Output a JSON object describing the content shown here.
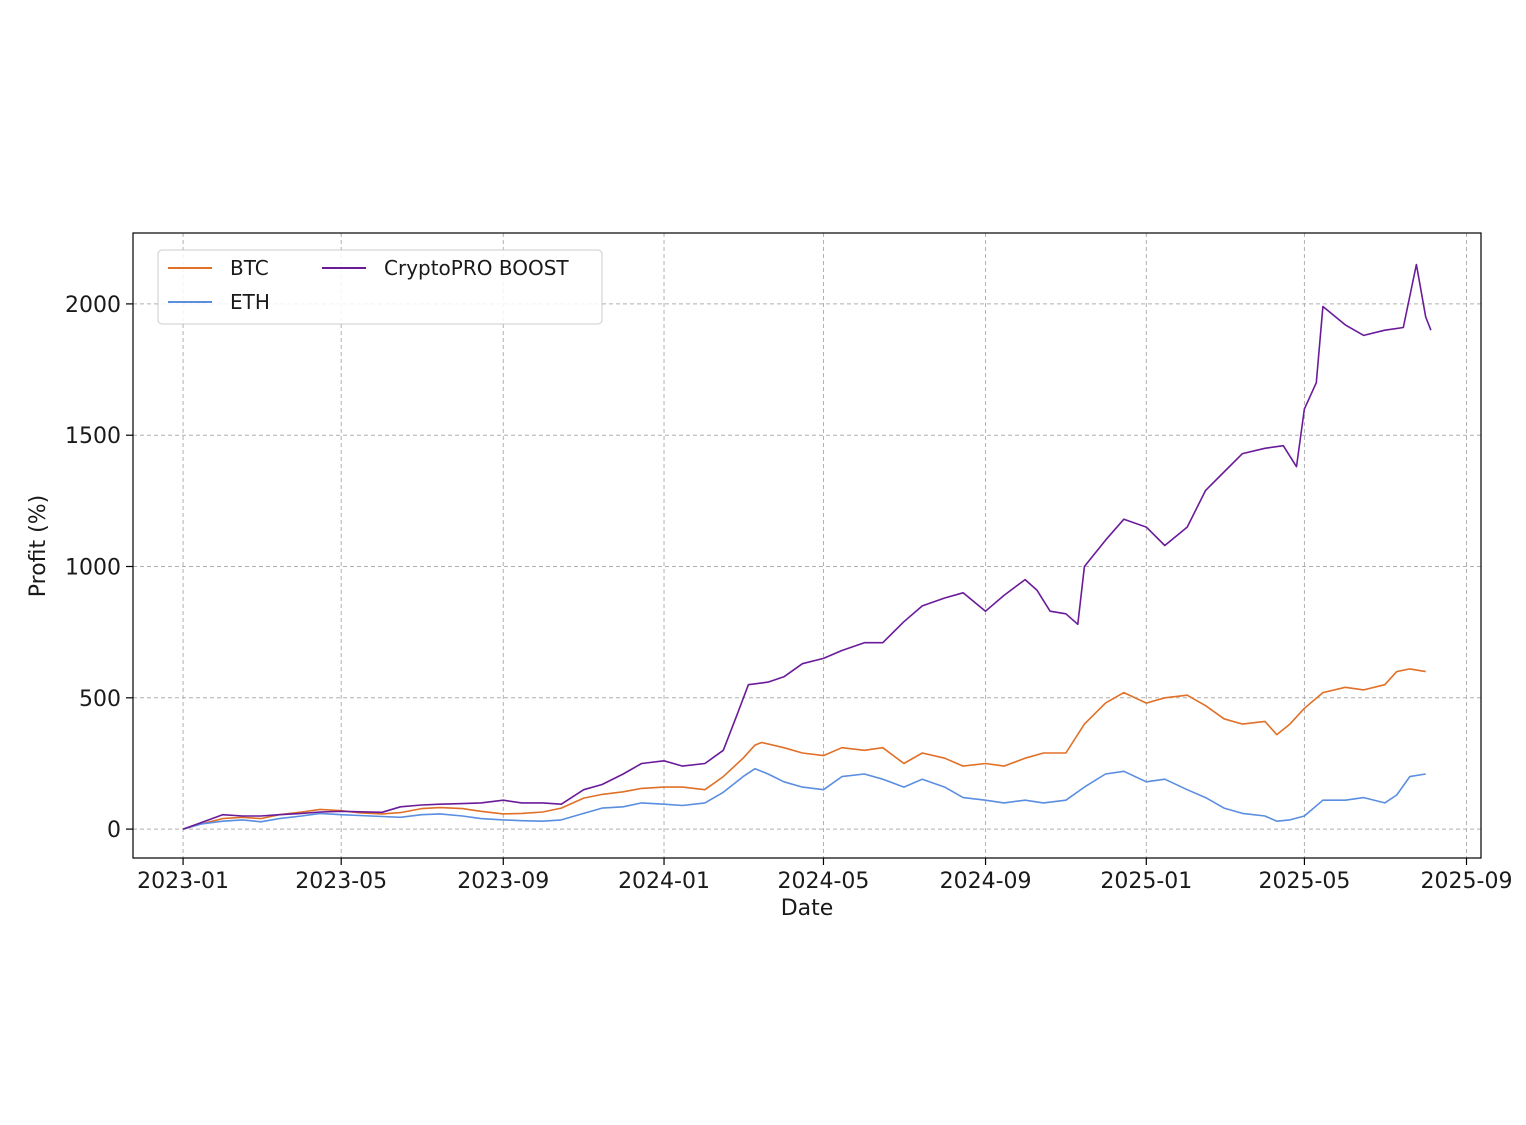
{
  "chart_data": {
    "type": "line",
    "title": "",
    "xlabel": "Date",
    "ylabel": "Profit (%)",
    "xlim": [
      "2022-11-24",
      "2025-09-12"
    ],
    "ylim": [
      -110,
      2270
    ],
    "x_ticks": [
      "2023-01",
      "2023-05",
      "2023-09",
      "2024-01",
      "2024-05",
      "2024-09",
      "2025-01",
      "2025-05",
      "2025-09"
    ],
    "x_tick_dates": [
      "2023-01-01",
      "2023-05-01",
      "2023-09-01",
      "2024-01-01",
      "2024-05-01",
      "2024-09-01",
      "2025-01-01",
      "2025-05-01",
      "2025-09-01"
    ],
    "y_ticks": [
      0,
      500,
      1000,
      1500,
      2000
    ],
    "grid": true,
    "legend_position": "top-left",
    "series": [
      {
        "name": "BTC",
        "color": "#e07027",
        "points": [
          [
            "2023-01-01",
            0
          ],
          [
            "2023-01-15",
            20
          ],
          [
            "2023-01-31",
            40
          ],
          [
            "2023-02-15",
            45
          ],
          [
            "2023-03-01",
            40
          ],
          [
            "2023-03-15",
            55
          ],
          [
            "2023-04-01",
            65
          ],
          [
            "2023-04-15",
            75
          ],
          [
            "2023-05-01",
            70
          ],
          [
            "2023-05-15",
            62
          ],
          [
            "2023-06-01",
            58
          ],
          [
            "2023-06-15",
            63
          ],
          [
            "2023-07-01",
            78
          ],
          [
            "2023-07-15",
            82
          ],
          [
            "2023-08-01",
            78
          ],
          [
            "2023-08-15",
            68
          ],
          [
            "2023-09-01",
            58
          ],
          [
            "2023-09-15",
            60
          ],
          [
            "2023-10-01",
            65
          ],
          [
            "2023-10-15",
            80
          ],
          [
            "2023-11-01",
            118
          ],
          [
            "2023-11-15",
            132
          ],
          [
            "2023-12-01",
            142
          ],
          [
            "2023-12-15",
            155
          ],
          [
            "2024-01-01",
            160
          ],
          [
            "2024-01-15",
            160
          ],
          [
            "2024-02-01",
            150
          ],
          [
            "2024-02-15",
            200
          ],
          [
            "2024-03-01",
            270
          ],
          [
            "2024-03-10",
            320
          ],
          [
            "2024-03-15",
            330
          ],
          [
            "2024-04-01",
            310
          ],
          [
            "2024-04-15",
            290
          ],
          [
            "2024-05-01",
            280
          ],
          [
            "2024-05-15",
            310
          ],
          [
            "2024-06-01",
            300
          ],
          [
            "2024-06-15",
            310
          ],
          [
            "2024-07-01",
            250
          ],
          [
            "2024-07-15",
            290
          ],
          [
            "2024-08-01",
            270
          ],
          [
            "2024-08-15",
            240
          ],
          [
            "2024-09-01",
            250
          ],
          [
            "2024-09-15",
            240
          ],
          [
            "2024-10-01",
            270
          ],
          [
            "2024-10-15",
            290
          ],
          [
            "2024-11-01",
            290
          ],
          [
            "2024-11-15",
            400
          ],
          [
            "2024-12-01",
            480
          ],
          [
            "2024-12-15",
            520
          ],
          [
            "2025-01-01",
            480
          ],
          [
            "2025-01-15",
            500
          ],
          [
            "2025-02-01",
            510
          ],
          [
            "2025-02-15",
            470
          ],
          [
            "2025-03-01",
            420
          ],
          [
            "2025-03-15",
            400
          ],
          [
            "2025-04-01",
            410
          ],
          [
            "2025-04-10",
            360
          ],
          [
            "2025-04-20",
            400
          ],
          [
            "2025-05-01",
            460
          ],
          [
            "2025-05-15",
            520
          ],
          [
            "2025-06-01",
            540
          ],
          [
            "2025-06-15",
            530
          ],
          [
            "2025-07-01",
            550
          ],
          [
            "2025-07-10",
            600
          ],
          [
            "2025-07-20",
            610
          ],
          [
            "2025-08-01",
            600
          ]
        ]
      },
      {
        "name": "ETH",
        "color": "#5a8ee0",
        "points": [
          [
            "2023-01-01",
            0
          ],
          [
            "2023-01-15",
            20
          ],
          [
            "2023-01-31",
            30
          ],
          [
            "2023-02-15",
            35
          ],
          [
            "2023-03-01",
            28
          ],
          [
            "2023-03-15",
            40
          ],
          [
            "2023-04-01",
            50
          ],
          [
            "2023-04-15",
            60
          ],
          [
            "2023-05-01",
            55
          ],
          [
            "2023-05-15",
            52
          ],
          [
            "2023-06-01",
            48
          ],
          [
            "2023-06-15",
            45
          ],
          [
            "2023-07-01",
            55
          ],
          [
            "2023-07-15",
            58
          ],
          [
            "2023-08-01",
            50
          ],
          [
            "2023-08-15",
            40
          ],
          [
            "2023-09-01",
            35
          ],
          [
            "2023-09-15",
            32
          ],
          [
            "2023-10-01",
            30
          ],
          [
            "2023-10-15",
            35
          ],
          [
            "2023-11-01",
            60
          ],
          [
            "2023-11-15",
            80
          ],
          [
            "2023-12-01",
            85
          ],
          [
            "2023-12-15",
            100
          ],
          [
            "2024-01-01",
            95
          ],
          [
            "2024-01-15",
            90
          ],
          [
            "2024-02-01",
            100
          ],
          [
            "2024-02-15",
            140
          ],
          [
            "2024-03-01",
            200
          ],
          [
            "2024-03-10",
            230
          ],
          [
            "2024-03-20",
            210
          ],
          [
            "2024-04-01",
            180
          ],
          [
            "2024-04-15",
            160
          ],
          [
            "2024-05-01",
            150
          ],
          [
            "2024-05-15",
            200
          ],
          [
            "2024-06-01",
            210
          ],
          [
            "2024-06-15",
            190
          ],
          [
            "2024-07-01",
            160
          ],
          [
            "2024-07-15",
            190
          ],
          [
            "2024-08-01",
            160
          ],
          [
            "2024-08-15",
            120
          ],
          [
            "2024-09-01",
            110
          ],
          [
            "2024-09-15",
            100
          ],
          [
            "2024-10-01",
            110
          ],
          [
            "2024-10-15",
            100
          ],
          [
            "2024-11-01",
            110
          ],
          [
            "2024-11-15",
            160
          ],
          [
            "2024-12-01",
            210
          ],
          [
            "2024-12-15",
            220
          ],
          [
            "2025-01-01",
            180
          ],
          [
            "2025-01-15",
            190
          ],
          [
            "2025-02-01",
            150
          ],
          [
            "2025-02-15",
            120
          ],
          [
            "2025-03-01",
            80
          ],
          [
            "2025-03-15",
            60
          ],
          [
            "2025-04-01",
            50
          ],
          [
            "2025-04-10",
            30
          ],
          [
            "2025-04-20",
            35
          ],
          [
            "2025-05-01",
            50
          ],
          [
            "2025-05-15",
            110
          ],
          [
            "2025-06-01",
            110
          ],
          [
            "2025-06-15",
            120
          ],
          [
            "2025-07-01",
            100
          ],
          [
            "2025-07-10",
            130
          ],
          [
            "2025-07-20",
            200
          ],
          [
            "2025-08-01",
            210
          ]
        ]
      },
      {
        "name": "CryptoPRO BOOST",
        "color": "#6a1b9a",
        "points": [
          [
            "2023-01-01",
            0
          ],
          [
            "2023-01-15",
            25
          ],
          [
            "2023-01-31",
            55
          ],
          [
            "2023-02-15",
            50
          ],
          [
            "2023-03-01",
            50
          ],
          [
            "2023-03-15",
            55
          ],
          [
            "2023-04-01",
            60
          ],
          [
            "2023-04-15",
            65
          ],
          [
            "2023-05-01",
            68
          ],
          [
            "2023-05-15",
            66
          ],
          [
            "2023-06-01",
            64
          ],
          [
            "2023-06-15",
            85
          ],
          [
            "2023-07-01",
            92
          ],
          [
            "2023-07-15",
            95
          ],
          [
            "2023-08-01",
            97
          ],
          [
            "2023-08-15",
            100
          ],
          [
            "2023-09-01",
            110
          ],
          [
            "2023-09-15",
            100
          ],
          [
            "2023-10-01",
            100
          ],
          [
            "2023-10-15",
            95
          ],
          [
            "2023-11-01",
            150
          ],
          [
            "2023-11-15",
            170
          ],
          [
            "2023-12-01",
            210
          ],
          [
            "2023-12-15",
            250
          ],
          [
            "2024-01-01",
            260
          ],
          [
            "2024-01-15",
            240
          ],
          [
            "2024-02-01",
            250
          ],
          [
            "2024-02-15",
            300
          ],
          [
            "2024-02-25",
            430
          ],
          [
            "2024-03-05",
            550
          ],
          [
            "2024-03-20",
            560
          ],
          [
            "2024-04-01",
            580
          ],
          [
            "2024-04-15",
            630
          ],
          [
            "2024-05-01",
            650
          ],
          [
            "2024-05-15",
            680
          ],
          [
            "2024-06-01",
            710
          ],
          [
            "2024-06-15",
            710
          ],
          [
            "2024-07-01",
            790
          ],
          [
            "2024-07-15",
            850
          ],
          [
            "2024-08-01",
            880
          ],
          [
            "2024-08-15",
            900
          ],
          [
            "2024-09-01",
            830
          ],
          [
            "2024-09-15",
            890
          ],
          [
            "2024-10-01",
            950
          ],
          [
            "2024-10-10",
            910
          ],
          [
            "2024-10-20",
            830
          ],
          [
            "2024-11-01",
            820
          ],
          [
            "2024-11-10",
            780
          ],
          [
            "2024-11-15",
            1000
          ],
          [
            "2024-12-01",
            1100
          ],
          [
            "2024-12-15",
            1180
          ],
          [
            "2025-01-01",
            1150
          ],
          [
            "2025-01-15",
            1080
          ],
          [
            "2025-02-01",
            1150
          ],
          [
            "2025-02-15",
            1290
          ],
          [
            "2025-03-01",
            1360
          ],
          [
            "2025-03-15",
            1430
          ],
          [
            "2025-04-01",
            1450
          ],
          [
            "2025-04-15",
            1460
          ],
          [
            "2025-04-25",
            1380
          ],
          [
            "2025-05-01",
            1600
          ],
          [
            "2025-05-10",
            1700
          ],
          [
            "2025-05-15",
            1990
          ],
          [
            "2025-06-01",
            1920
          ],
          [
            "2025-06-15",
            1880
          ],
          [
            "2025-07-01",
            1900
          ],
          [
            "2025-07-15",
            1910
          ],
          [
            "2025-07-25",
            2150
          ],
          [
            "2025-08-01",
            1950
          ],
          [
            "2025-08-05",
            1900
          ]
        ]
      }
    ]
  }
}
